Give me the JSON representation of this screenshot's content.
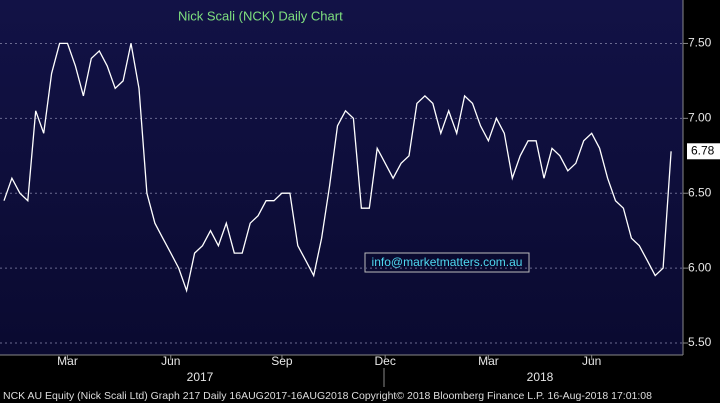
{
  "chart_data": {
    "type": "line",
    "title": "Nick Scali (NCK) Daily Chart",
    "annotation": "info@marketmatters.com.au",
    "footer": "NCK AU Equity (Nick Scali Ltd) Graph 217  Daily 16AUG2017-16AUG2018  Copyright© 2018 Bloomberg Finance L.P.   16-Aug-2018 17:01:08",
    "years": [
      "2017",
      "2018"
    ],
    "categories": [
      null,
      null,
      null,
      null,
      null,
      null,
      null,
      null,
      "Mar",
      null,
      null,
      null,
      null,
      null,
      null,
      null,
      null,
      null,
      null,
      null,
      null,
      "Jun",
      null,
      null,
      null,
      null,
      null,
      null,
      null,
      null,
      null,
      null,
      null,
      null,
      null,
      "Sep",
      null,
      null,
      null,
      null,
      null,
      null,
      null,
      null,
      null,
      null,
      null,
      null,
      "Dec",
      null,
      null,
      null,
      null,
      null,
      null,
      null,
      null,
      null,
      null,
      null,
      null,
      "Mar",
      null,
      null,
      null,
      null,
      null,
      null,
      null,
      null,
      null,
      null,
      null,
      null,
      "Jun",
      null,
      null,
      null,
      null,
      null,
      null,
      null,
      null,
      null,
      null,
      null
    ],
    "series": [
      {
        "name": "NCK AU Equity",
        "color": "#ffffff",
        "values": [
          6.45,
          6.6,
          6.5,
          6.45,
          7.05,
          6.9,
          7.3,
          7.5,
          7.5,
          7.35,
          7.15,
          7.4,
          7.45,
          7.35,
          7.2,
          7.25,
          7.5,
          7.2,
          6.5,
          6.3,
          6.2,
          6.1,
          6.0,
          5.85,
          6.1,
          6.15,
          6.25,
          6.15,
          6.3,
          6.1,
          6.1,
          6.3,
          6.35,
          6.45,
          6.45,
          6.5,
          6.5,
          6.15,
          6.05,
          5.95,
          6.2,
          6.55,
          6.95,
          7.05,
          7.0,
          6.4,
          6.4,
          6.8,
          6.7,
          6.6,
          6.7,
          6.75,
          7.1,
          7.15,
          7.1,
          6.9,
          7.05,
          6.9,
          7.15,
          7.1,
          6.95,
          6.85,
          7.0,
          6.9,
          6.6,
          6.75,
          6.85,
          6.85,
          6.6,
          6.8,
          6.75,
          6.65,
          6.7,
          6.85,
          6.9,
          6.8,
          6.6,
          6.45,
          6.4,
          6.2,
          6.15,
          6.05,
          5.95,
          6.0,
          6.78,
          null
        ]
      }
    ],
    "ylim": [
      5.42,
      7.79
    ],
    "yticks": [
      {
        "value": 5.5,
        "label": "5.50"
      },
      {
        "value": 6,
        "label": "6.00"
      },
      {
        "value": 6.5,
        "label": "6.50"
      },
      {
        "value": 7,
        "label": "7.00"
      },
      {
        "value": 7.5,
        "label": "7.50"
      }
    ],
    "grid": true
  }
}
